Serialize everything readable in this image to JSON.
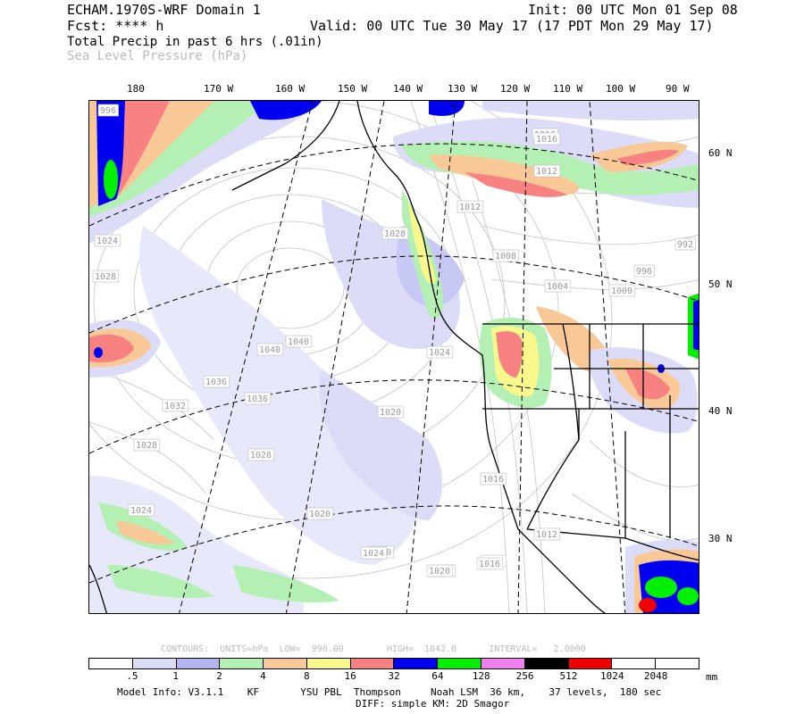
{
  "header": {
    "left_line1": "ECHAM.1970S-WRF Domain 1",
    "left_line2": "Fcst: **** h",
    "right_line1": "Init: 00 UTC Mon 01 Sep 08",
    "right_line2": "Valid: 00 UTC Tue 30 May 17 (17 PDT Mon 29 May 17)",
    "field1": "Total Precip in past 6 hrs (.01in)",
    "field2": "Sea Level Pressure (hPa)"
  },
  "longitude_labels": [
    "180",
    "170 W",
    "160 W",
    "150 W",
    "140 W",
    "130 W",
    "120 W",
    "110 W",
    "100 W",
    "90 W"
  ],
  "latitude_labels": [
    "60 N",
    "50 N",
    "40 N",
    "30 N"
  ],
  "pressure_labels": [
    "996",
    "1024",
    "1028",
    "1040",
    "1040",
    "1036",
    "1036",
    "1032",
    "1028",
    "1028",
    "1024",
    "1020",
    "1020",
    "1024",
    "1028",
    "1024",
    "1020",
    "1016",
    "1012",
    "1008",
    "1004",
    "1000",
    "996",
    "992",
    "1012",
    "1016",
    "1016",
    "1012",
    "1012",
    "1016",
    "1020",
    "1024"
  ],
  "contours_info": "CONTOURS:  UNITS=hPa  LOW=  990.00        HIGH=  1042.0      INTERVAL=   2.0000",
  "colorbar": {
    "colors": [
      "#ffffff",
      "#dcdcf8",
      "#b4b4f0",
      "#b4f0b4",
      "#f8c896",
      "#f8f88c",
      "#f88282",
      "#0000f0",
      "#00f000",
      "#f080f0",
      "#000000",
      "#f00000",
      "#ffffff",
      "#ffffff"
    ],
    "ticks": [
      ".5",
      "1",
      "2",
      "4",
      "8",
      "16",
      "32",
      "64",
      "128",
      "256",
      "512",
      "1024",
      "2048"
    ],
    "unit": "mm"
  },
  "footer": {
    "line1": "Model Info: V3.1.1    KF       YSU PBL  Thompson     Noah LSM  36 km,    37 levels,  180 sec",
    "line2": "DIFF: simple KM: 2D Smagor"
  }
}
